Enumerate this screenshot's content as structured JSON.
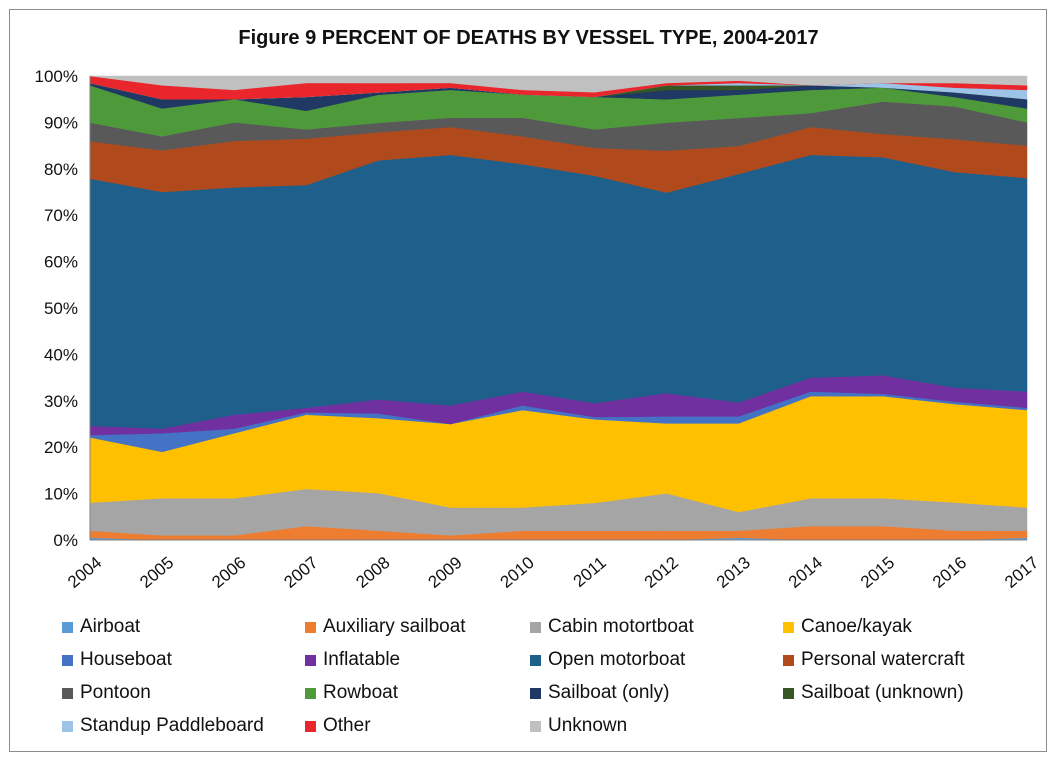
{
  "chart_data": {
    "type": "area",
    "stacked": true,
    "normalized": true,
    "title": "Figure 9 PERCENT OF DEATHS BY VESSEL TYPE, 2004-2017",
    "x": [
      "2004",
      "2005",
      "2006",
      "2007",
      "2008",
      "2009",
      "2010",
      "2011",
      "2012",
      "2013",
      "2014",
      "2015",
      "2016",
      "2017"
    ],
    "ylim": [
      0,
      100
    ],
    "yticks": [
      "0%",
      "10%",
      "20%",
      "30%",
      "40%",
      "50%",
      "60%",
      "70%",
      "80%",
      "90%",
      "100%"
    ],
    "grid": false,
    "legend_position": "bottom",
    "series": [
      {
        "name": "Airboat",
        "color": "#5b9bd5",
        "values": [
          0.5,
          0,
          0,
          0,
          0,
          0,
          0,
          0,
          0,
          0.5,
          0,
          0,
          0,
          0.5
        ]
      },
      {
        "name": "Auxiliary sailboat",
        "color": "#ed7d31",
        "values": [
          1.5,
          1,
          1,
          3,
          2,
          1,
          2,
          2,
          2,
          1.5,
          3,
          3,
          2,
          1.5
        ]
      },
      {
        "name": "Cabin motortboat",
        "color": "#a5a5a5",
        "values": [
          6,
          8,
          8,
          8,
          8,
          6,
          5,
          6,
          8,
          4,
          6,
          6,
          6,
          5
        ]
      },
      {
        "name": "Canoe/kayak",
        "color": "#ffc000",
        "values": [
          14,
          10,
          14,
          16,
          16,
          18,
          21,
          18,
          15,
          19,
          22,
          22,
          21,
          21
        ]
      },
      {
        "name": "Houseboat",
        "color": "#4472c4",
        "values": [
          0.5,
          4,
          1,
          0.5,
          1,
          0,
          1,
          0.5,
          1.5,
          1.5,
          1,
          0.5,
          0.5,
          0.5
        ]
      },
      {
        "name": "Inflatable",
        "color": "#7030a0",
        "values": [
          2,
          1,
          3,
          1,
          3,
          4,
          3,
          3,
          5,
          3,
          3,
          4,
          3,
          3.5
        ]
      },
      {
        "name": "Open motorboat",
        "color": "#1f5f8b",
        "values": [
          53,
          51,
          49,
          48,
          51,
          54,
          49,
          49,
          43,
          49,
          48,
          47,
          46,
          46
        ]
      },
      {
        "name": "Personal watercraft",
        "color": "#b04a1c",
        "values": [
          8,
          9,
          10,
          10,
          6,
          6,
          6,
          6,
          9,
          6,
          6,
          5,
          7,
          7
        ]
      },
      {
        "name": "Pontoon",
        "color": "#595959",
        "values": [
          4,
          3,
          4,
          2,
          2,
          2,
          4,
          4,
          6,
          6,
          3,
          7,
          7,
          5
        ]
      },
      {
        "name": "Rowboat",
        "color": "#4e9a3b",
        "values": [
          8,
          6,
          5,
          4,
          6,
          6,
          5,
          7,
          5,
          5,
          5,
          3,
          2,
          3
        ]
      },
      {
        "name": "Sailboat (only)",
        "color": "#1f3864",
        "values": [
          0.5,
          2,
          0,
          3,
          0.5,
          0.5,
          0,
          0,
          2,
          1,
          1,
          0,
          1,
          2
        ]
      },
      {
        "name": "Sailboat (unknown)",
        "color": "#375623",
        "values": [
          0,
          0,
          0,
          0,
          0,
          0,
          0,
          0,
          1,
          1,
          0,
          0,
          0,
          0
        ]
      },
      {
        "name": "Standup Paddleboard",
        "color": "#9dc3e6",
        "values": [
          0,
          0,
          0,
          0,
          0,
          0,
          0,
          0,
          0,
          0.5,
          0,
          1,
          1,
          2
        ]
      },
      {
        "name": "Other",
        "color": "#e8262b",
        "values": [
          1.5,
          3,
          2,
          3,
          2,
          1,
          1,
          1,
          0.5,
          0.5,
          0,
          0,
          1,
          1
        ]
      },
      {
        "name": "Unknown",
        "color": "#c0c0c0",
        "values": [
          0,
          2,
          3,
          1.5,
          1.5,
          1.5,
          3,
          3.5,
          1.5,
          1,
          2,
          1.5,
          1.5,
          2
        ]
      }
    ]
  }
}
